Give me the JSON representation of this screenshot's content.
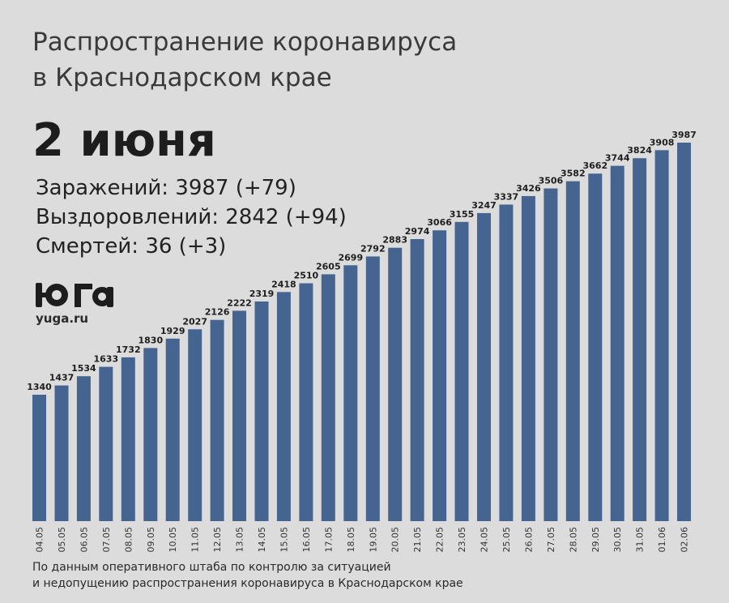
{
  "header": {
    "title_line1": "Распространение коронавируса",
    "title_line2": "в Краснодарском крае",
    "date": "2 июня"
  },
  "stats": {
    "infected": "Заражений: 3987 (+79)",
    "recovered": "Выздоровлений: 2842 (+94)",
    "deaths": "Смертей: 36 (+3)"
  },
  "brand": {
    "logo_text": "юга",
    "url": "yuga.ru"
  },
  "footnote": {
    "line1": "По данным оперативного штаба по контролю за ситуацией",
    "line2": "и недопущению распространения коронавируса в Краснодарском крае"
  },
  "colors": {
    "bar": "#45648f",
    "background": "#dcdcdc"
  },
  "chart_data": {
    "type": "bar",
    "categories": [
      "04.05",
      "05.05",
      "06.05",
      "07.05",
      "08.05",
      "09.05",
      "10.05",
      "11.05",
      "12.05",
      "13.05",
      "14.05",
      "15.05",
      "16.05",
      "17.05",
      "18.05",
      "19.05",
      "20.05",
      "21.05",
      "22.05",
      "23.05",
      "24.05",
      "25.05",
      "26.05",
      "27.05",
      "28.05",
      "29.05",
      "30.05",
      "31.05",
      "01.06",
      "02.06"
    ],
    "values": [
      1340,
      1437,
      1534,
      1633,
      1732,
      1830,
      1929,
      2027,
      2126,
      2222,
      2319,
      2418,
      2510,
      2605,
      2699,
      2792,
      2883,
      2974,
      3066,
      3155,
      3247,
      3337,
      3426,
      3506,
      3582,
      3662,
      3744,
      3824,
      3908,
      3987
    ],
    "title": "",
    "xlabel": "",
    "ylabel": "",
    "data_labels": true,
    "grid": false,
    "legend": "none"
  }
}
